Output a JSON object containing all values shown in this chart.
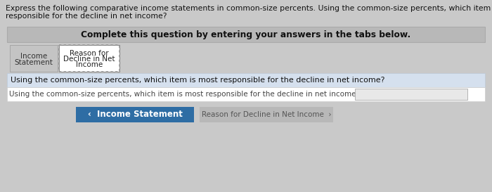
{
  "header_text_line1": "Express the following comparative income statements in common-size percents. Using the common-size percents, which item is most",
  "header_text_line2": "responsible for the decline in net income?",
  "complete_text": "Complete this question by entering your answers in the tabs below.",
  "tab1_line1": "Income",
  "tab1_line2": "Statement",
  "tab2_line1": "Reason for",
  "tab2_line2": "Decline in Net",
  "tab2_line3": "Income",
  "body_text": "Using the common-size percents, which item is most responsible for the decline in net income?",
  "input_label": "Using the common-size percents, which item is most responsible for the decline in net income?",
  "btn1_text": "‹  Income Statement",
  "btn2_text": "Reason for Decline in Net Income  ›",
  "page_bg": "#c9c9c9",
  "complete_bg": "#b8b8b8",
  "complete_border": "#aaaaaa",
  "tabs_area_bg": "#c9c9c9",
  "tab1_bg": "#c4c4c4",
  "tab1_border": "#999999",
  "tab2_bg": "#ffffff",
  "tab2_border": "#888888",
  "body_bg": "#d5e0ee",
  "input_row_bg": "#ffffff",
  "input_row_border": "#cccccc",
  "input_box_bg": "#e8e8e8",
  "input_box_border": "#aaaaaa",
  "btn1_bg": "#2e6da4",
  "btn2_bg": "#b8b8b8",
  "btn1_text_color": "#ffffff",
  "btn2_text_color": "#555555",
  "header_fontsize": 7.8,
  "complete_fontsize": 8.8,
  "body_fontsize": 8.0,
  "tab_fontsize": 7.5,
  "btn_fontsize": 8.5,
  "input_fontsize": 7.5
}
